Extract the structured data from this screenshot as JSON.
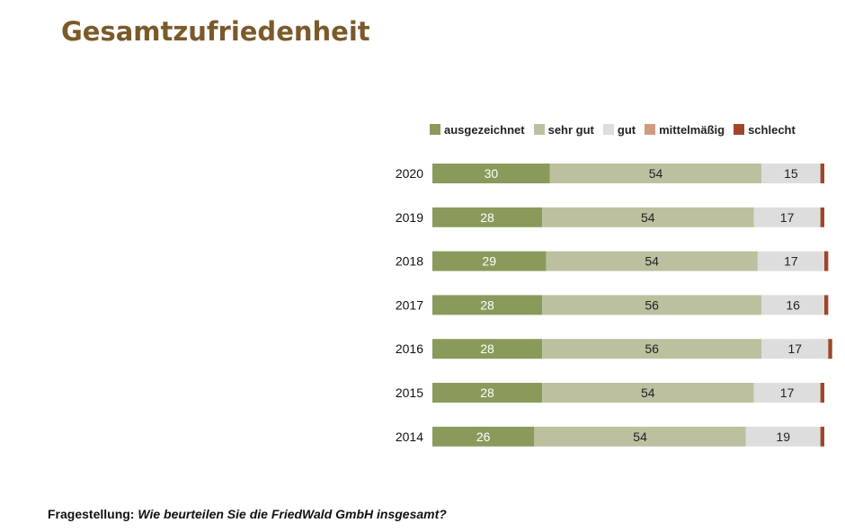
{
  "title": "Gesamtzufriedenheit",
  "footer": {
    "label": "Fragestellung:",
    "question": "Wie beurteilen Sie die FriedWald GmbH insgesamt?"
  },
  "chart_data": {
    "type": "bar",
    "orientation": "horizontal-stacked-100",
    "categories": [
      "2020",
      "2019",
      "2018",
      "2017",
      "2016",
      "2015",
      "2014"
    ],
    "series": [
      {
        "name": "ausgezeichnet",
        "color": "#8a9a5b",
        "values": [
          30,
          28,
          29,
          28,
          28,
          28,
          26
        ]
      },
      {
        "name": "sehr gut",
        "color": "#bcc09f",
        "values": [
          54,
          54,
          54,
          56,
          56,
          54,
          54
        ]
      },
      {
        "name": "gut",
        "color": "#dddddd",
        "values": [
          15,
          17,
          17,
          16,
          17,
          17,
          19
        ]
      },
      {
        "name": "mittelmäßig",
        "color": "#d19b80",
        "values": [
          0,
          0,
          0,
          0,
          0,
          0,
          0
        ]
      },
      {
        "name": "schlecht",
        "color": "#a0452a",
        "values": [
          1,
          1,
          1,
          1,
          1,
          1,
          1
        ]
      }
    ],
    "value_label_colors": [
      "#ffffff",
      "#222222",
      "#222222"
    ],
    "legend_position": "top",
    "grid": false
  }
}
